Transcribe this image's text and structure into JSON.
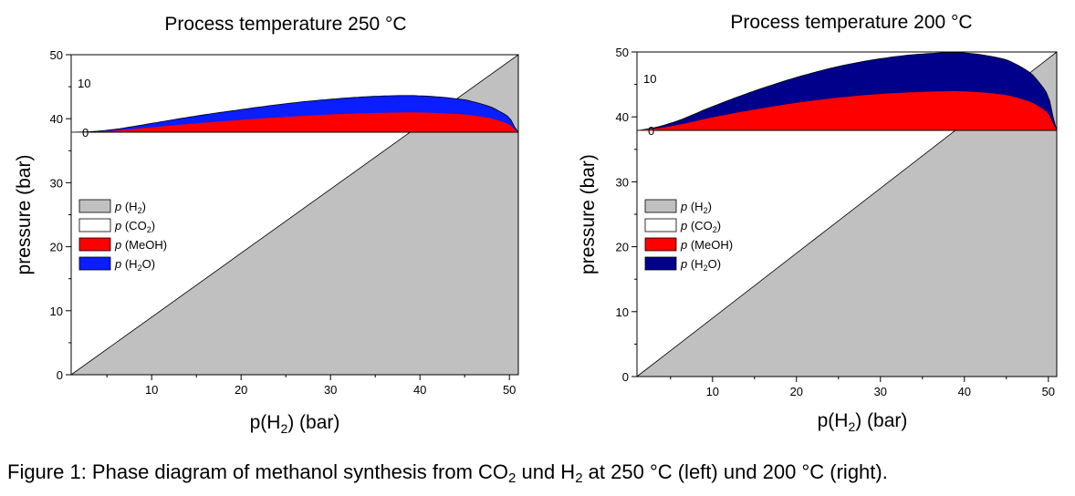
{
  "figure": {
    "caption": {
      "part1": "Figure 1: Phase diagram of methanol synthesis from CO",
      "sub1": "2",
      "part2": " und H",
      "sub2": "2",
      "part3": " at 250 °C (left) und 200 °C (right)."
    }
  },
  "colors": {
    "h2": "#c0c0c0",
    "co2": "#ffffff",
    "meoh_left": "#ff0000",
    "h2o_left": "#0a1eff",
    "meoh_right": "#ff0000",
    "h2o_right": "#00008b"
  },
  "chart_data": [
    {
      "type": "area",
      "title": "Process temperature  250 °C",
      "xlabel_main": "p(H",
      "xlabel_sub": "2",
      "xlabel_tail": ")  (bar)",
      "ylabel": "pressure (bar)",
      "xlim": [
        1,
        51
      ],
      "ylim": [
        0,
        50
      ],
      "x_ticks": [
        10,
        20,
        30,
        40,
        50
      ],
      "y_ticks": [
        0,
        10,
        20,
        30,
        40,
        50
      ],
      "inset_ylim": [
        0,
        16
      ],
      "inset_y_ticks": [
        0,
        10
      ],
      "inset_tick_labels": [
        "0",
        "10"
      ],
      "legend": [
        {
          "prefix": "p",
          "label": " (H",
          "sub": "2",
          "tail": ")",
          "color_key": "h2"
        },
        {
          "prefix": "p",
          "label": " (CO",
          "sub": "2",
          "tail": ")",
          "color_key": "co2"
        },
        {
          "prefix": "p",
          "label": " (MeOH)",
          "sub": "",
          "tail": "",
          "color_key": "meoh_left"
        },
        {
          "prefix": "p",
          "label": " (H",
          "sub": "2",
          "tail": "O)",
          "color_key": "h2o_left"
        }
      ],
      "series": [
        {
          "name": "p (H2)",
          "x": [
            1,
            51
          ],
          "y": [
            0,
            50
          ]
        },
        {
          "name": "p (MeOH)",
          "x": [
            1,
            5,
            10,
            15,
            20,
            25,
            30,
            35,
            40,
            45,
            48,
            50,
            51
          ],
          "y": [
            0,
            0.2,
            1.0,
            1.8,
            2.5,
            3.1,
            3.6,
            3.9,
            4.0,
            3.6,
            2.8,
            1.6,
            0
          ]
        },
        {
          "name": "p (H2O)",
          "x": [
            1,
            5,
            10,
            15,
            20,
            25,
            30,
            35,
            40,
            45,
            48,
            50,
            51
          ],
          "y": [
            0,
            0.4,
            1.8,
            3.3,
            4.6,
            5.8,
            6.7,
            7.3,
            7.4,
            6.6,
            5.1,
            3.0,
            0
          ]
        }
      ]
    },
    {
      "type": "area",
      "title": "Process temperature  200 °C",
      "xlabel_main": "p(H",
      "xlabel_sub": "2",
      "xlabel_tail": ")  (bar)",
      "ylabel": "pressure (bar)",
      "xlim": [
        1,
        51
      ],
      "ylim": [
        0,
        50
      ],
      "x_ticks": [
        10,
        20,
        30,
        40,
        50
      ],
      "y_ticks": [
        0,
        10,
        20,
        30,
        40,
        50
      ],
      "inset_ylim": [
        0,
        16
      ],
      "inset_y_ticks": [
        0,
        10
      ],
      "inset_tick_labels": [
        "0",
        "10"
      ],
      "legend": [
        {
          "prefix": "p",
          "label": " (H",
          "sub": "2",
          "tail": ")",
          "color_key": "h2"
        },
        {
          "prefix": "p",
          "label": " (CO",
          "sub": "2",
          "tail": ")",
          "color_key": "co2"
        },
        {
          "prefix": "p",
          "label": " (MeOH)",
          "sub": "",
          "tail": "",
          "color_key": "meoh_right"
        },
        {
          "prefix": "p",
          "label": " (H",
          "sub": "2",
          "tail": "O)",
          "color_key": "h2o_right"
        }
      ],
      "series": [
        {
          "name": "p (H2)",
          "x": [
            1,
            51
          ],
          "y": [
            0,
            50
          ]
        },
        {
          "name": "p (MeOH)",
          "x": [
            1,
            5,
            10,
            15,
            20,
            25,
            30,
            35,
            40,
            45,
            48,
            50,
            51
          ],
          "y": [
            0,
            0.8,
            2.5,
            4.0,
            5.3,
            6.3,
            7.0,
            7.4,
            7.5,
            6.8,
            5.4,
            3.3,
            0
          ]
        },
        {
          "name": "p (H2O)",
          "x": [
            1,
            5,
            10,
            15,
            20,
            25,
            30,
            35,
            40,
            45,
            48,
            50,
            51
          ],
          "y": [
            0,
            1.4,
            4.6,
            7.6,
            10.2,
            12.3,
            13.8,
            14.7,
            14.9,
            13.6,
            10.9,
            6.7,
            0
          ]
        }
      ]
    }
  ]
}
